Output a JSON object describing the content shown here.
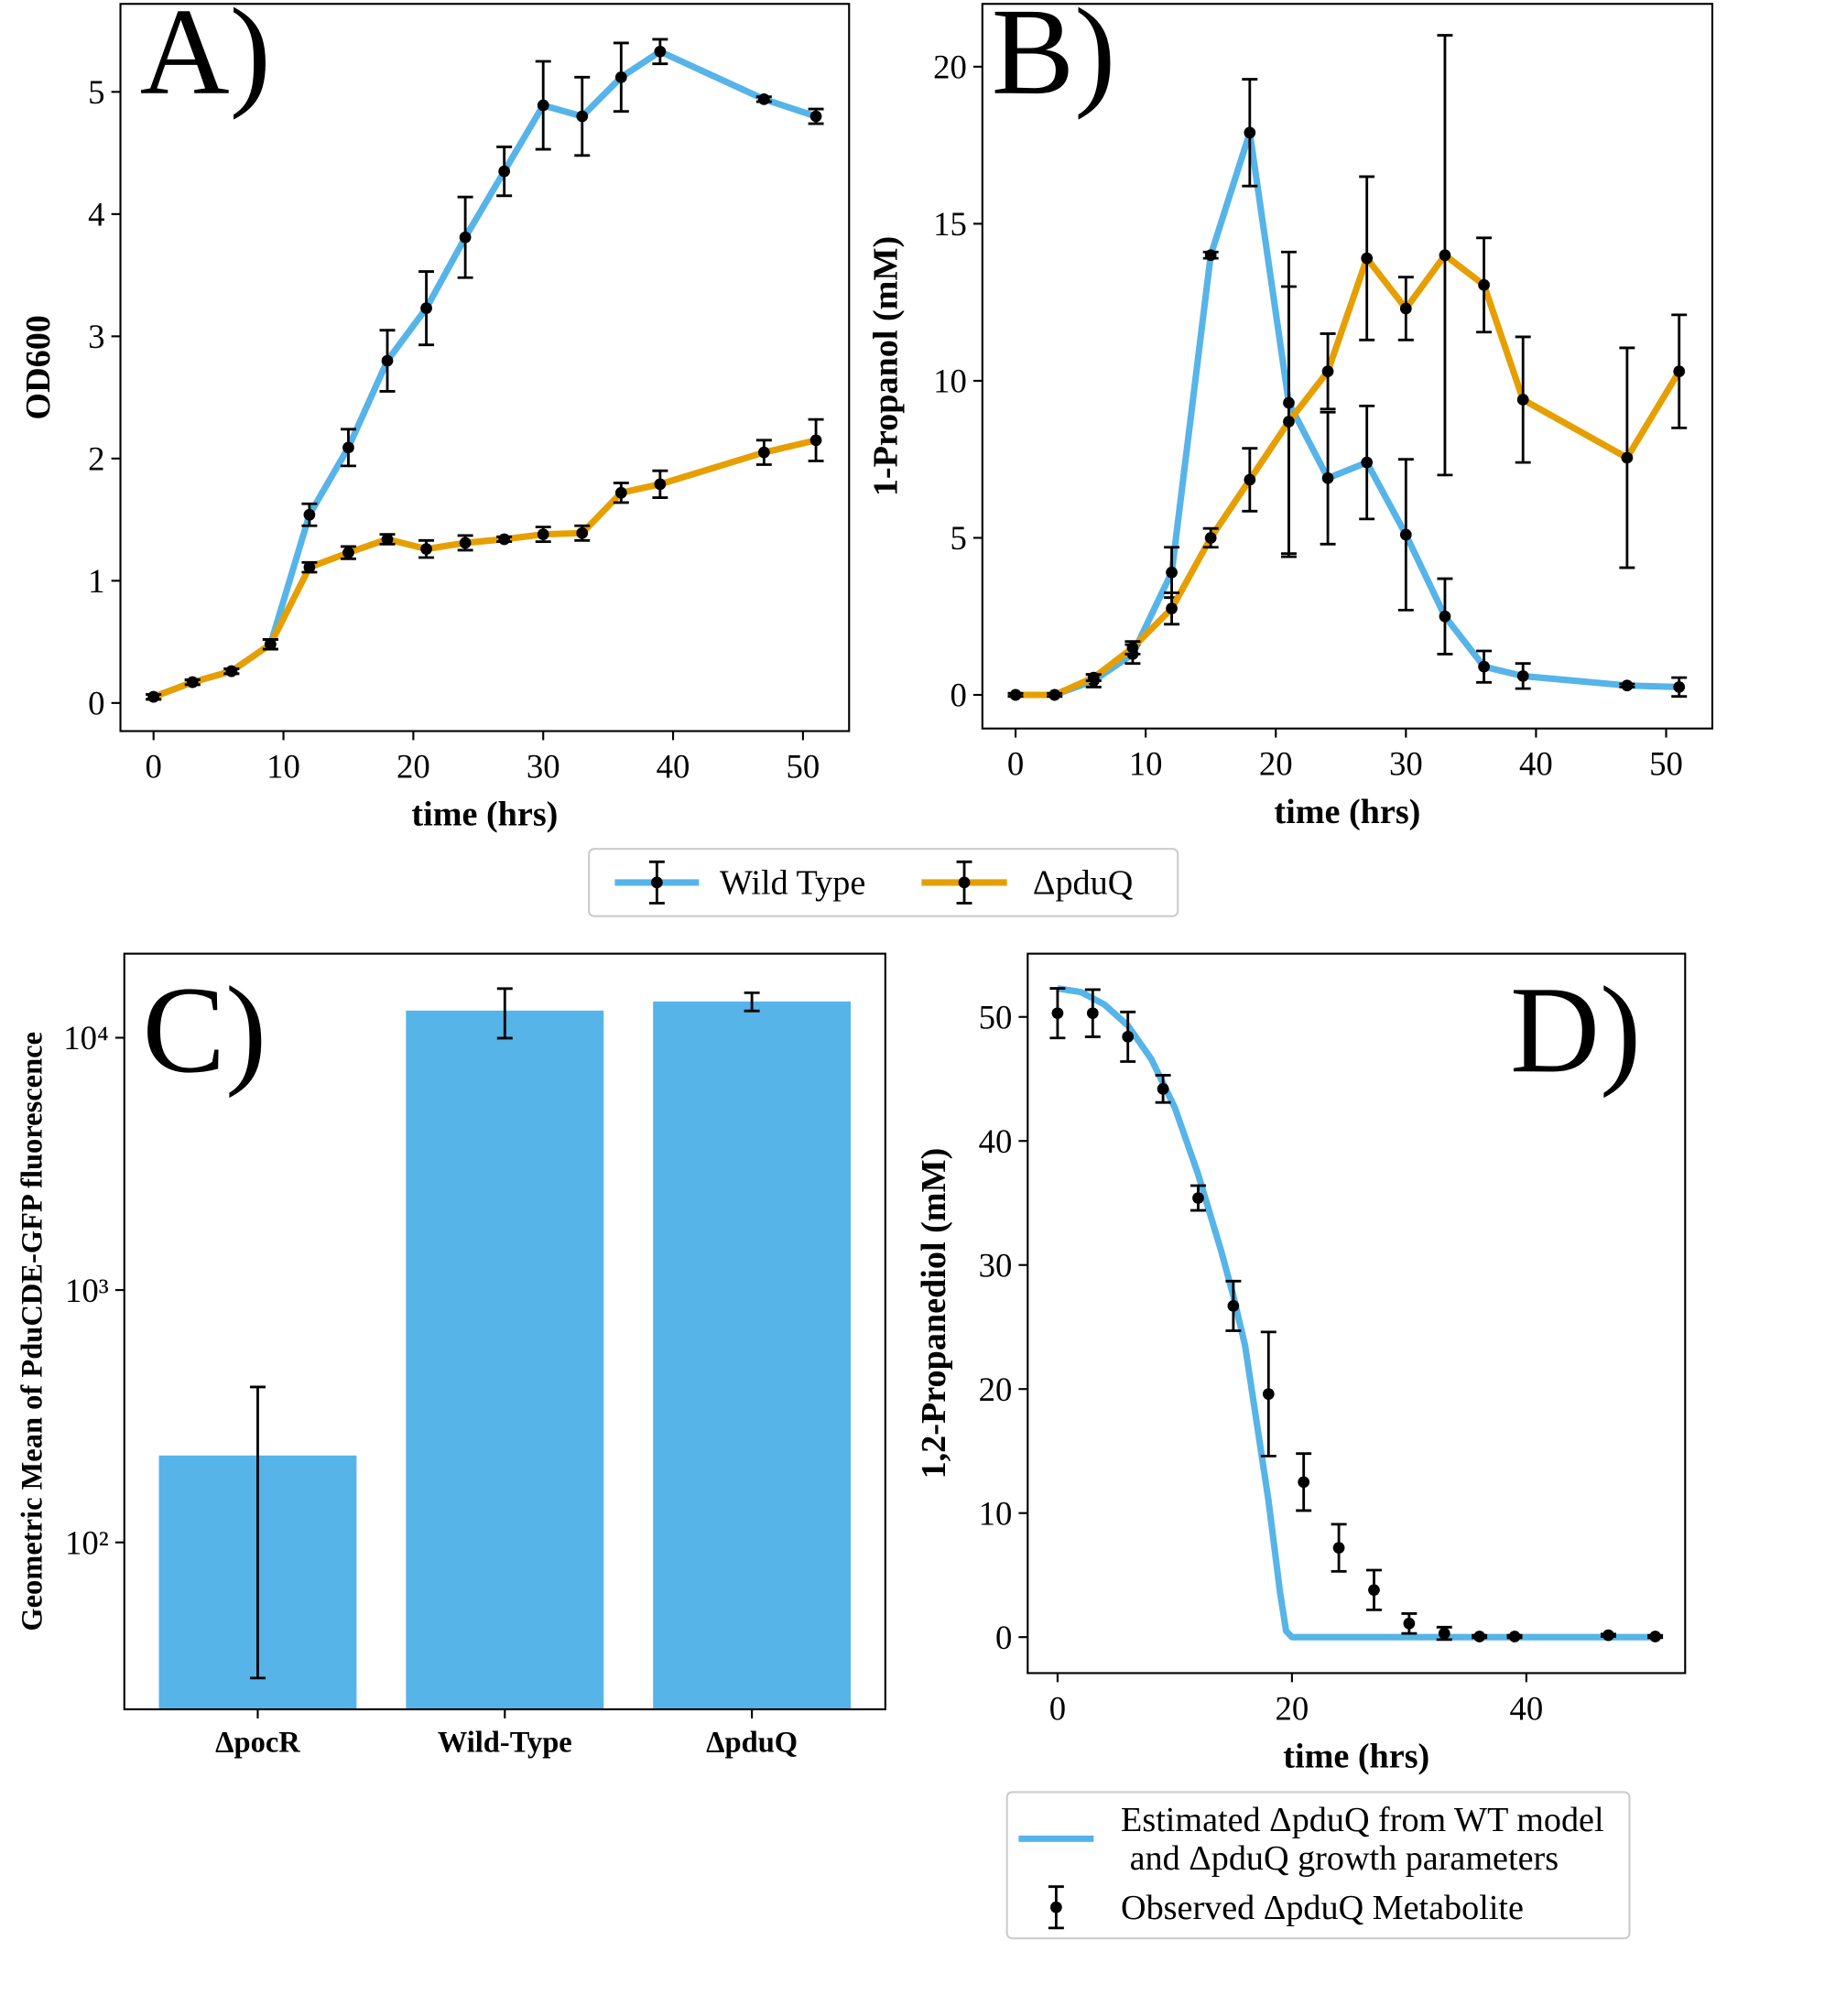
{
  "chart_data": [
    {
      "type": "line",
      "panel_label": "A)",
      "xlabel": "time (hrs)",
      "ylabel": "OD600",
      "x": [
        0,
        3,
        6,
        9,
        12,
        15,
        18,
        21,
        24,
        27,
        30,
        33,
        36,
        39,
        47,
        51
      ],
      "xlim": [
        -2.55,
        53.55
      ],
      "xticks": [
        0,
        10,
        20,
        30,
        40,
        50
      ],
      "ylim": [
        -0.23,
        5.72
      ],
      "yticks": [
        0,
        1,
        2,
        3,
        4,
        5
      ],
      "legend": "below",
      "series": [
        {
          "name": "Wild Type",
          "color": "#56B4E9",
          "values": [
            0.05,
            0.17,
            0.26,
            0.48,
            1.54,
            2.09,
            2.8,
            3.23,
            3.81,
            4.35,
            4.89,
            4.8,
            5.12,
            5.33,
            4.94,
            4.8
          ],
          "errors": [
            0.02,
            0.02,
            0.02,
            0.04,
            0.09,
            0.15,
            0.25,
            0.3,
            0.33,
            0.2,
            0.36,
            0.32,
            0.28,
            0.1,
            0.02,
            0.06
          ]
        },
        {
          "name": "ΔpduQ",
          "color": "#E69F00",
          "values": [
            0.05,
            0.17,
            0.26,
            0.48,
            1.11,
            1.23,
            1.34,
            1.26,
            1.31,
            1.34,
            1.38,
            1.39,
            1.72,
            1.79,
            2.05,
            2.15
          ],
          "errors": [
            0.02,
            0.02,
            0.02,
            0.04,
            0.04,
            0.05,
            0.04,
            0.07,
            0.06,
            0.02,
            0.06,
            0.06,
            0.08,
            0.11,
            0.1,
            0.17
          ]
        }
      ]
    },
    {
      "type": "line",
      "panel_label": "B)",
      "xlabel": "time (hrs)",
      "ylabel": "1-Propanol (mM)",
      "x": [
        0,
        3,
        6,
        9,
        12,
        15,
        18,
        21,
        24,
        27,
        30,
        33,
        36,
        39,
        47,
        51
      ],
      "xlim": [
        -2.55,
        53.55
      ],
      "xticks": [
        0,
        10,
        20,
        30,
        40,
        50
      ],
      "ylim": [
        -1.07,
        22
      ],
      "yticks": [
        0,
        5,
        10,
        15,
        20
      ],
      "series": [
        {
          "color": "#56B4E9",
          "values": [
            0,
            0,
            0.45,
            1.3,
            3.9,
            14.0,
            17.9,
            9.3,
            6.9,
            7.4,
            5.1,
            2.5,
            0.9,
            0.6,
            0.3,
            0.25
          ],
          "errors": [
            0.05,
            0.05,
            0.2,
            0.3,
            0.8,
            0.1,
            1.7,
            4.8,
            2.1,
            1.8,
            2.4,
            1.2,
            0.5,
            0.4,
            0.05,
            0.3
          ]
        },
        {
          "color": "#E69F00",
          "values": [
            0,
            0,
            0.55,
            1.5,
            2.75,
            5.0,
            6.85,
            8.7,
            10.3,
            13.9,
            12.3,
            14.0,
            13.05,
            9.4,
            7.55,
            10.3
          ],
          "errors": [
            0.05,
            0.05,
            0.1,
            0.2,
            0.5,
            0.3,
            1.0,
            4.3,
            1.2,
            2.6,
            1.0,
            7.0,
            1.5,
            2.0,
            3.5,
            1.8
          ]
        }
      ]
    },
    {
      "type": "bar",
      "panel_label": "C)",
      "ylabel": "Geometric Mean of PduCDE-GFP fluorescence",
      "categories": [
        "ΔpocR",
        "Wild-Type",
        "ΔpduQ"
      ],
      "values": [
        221,
        12810,
        13920
      ],
      "errors": [
        192,
        2850,
        1150
      ],
      "color": "#56B4E9",
      "log_scale": true,
      "ylim": [
        21.8,
        21540
      ],
      "yticks": [
        {
          "value": 100,
          "label": "10²"
        },
        {
          "value": 1000,
          "label": "10³"
        },
        {
          "value": 10000,
          "label": "10⁴"
        }
      ]
    },
    {
      "type": "line",
      "panel_label": "D)",
      "xlabel": "time (hrs)",
      "ylabel": "1,2-Propanediol (mM)",
      "xlim": [
        -2.55,
        53.55
      ],
      "xticks": [
        0,
        20,
        40
      ],
      "ylim": [
        -2.9,
        55.1
      ],
      "yticks": [
        0,
        10,
        20,
        30,
        40,
        50
      ],
      "legend": "lower",
      "series": [
        {
          "name": "Estimated ΔpduQ from WT model\n and ΔpduQ growth parameters",
          "color": "#56B4E9",
          "line": true,
          "x": [
            0,
            2,
            4,
            6,
            8,
            10,
            12,
            14,
            15,
            16,
            18,
            19,
            19.5,
            20,
            30,
            40,
            51
          ],
          "values": [
            52.3,
            52.0,
            51.0,
            49.3,
            46.6,
            42.7,
            37.3,
            31,
            27.5,
            23.5,
            11,
            3.5,
            0.5,
            0,
            0,
            0,
            0
          ]
        },
        {
          "name": "Observed ΔpduQ Metabolite",
          "color": "#000000",
          "line": false,
          "x": [
            0,
            3,
            6,
            9,
            12,
            15,
            18,
            21,
            24,
            27,
            30,
            33,
            36,
            39,
            47,
            51
          ],
          "values": [
            50.3,
            50.3,
            48.4,
            44.2,
            35.4,
            26.7,
            19.6,
            12.5,
            7.2,
            3.8,
            1.1,
            0.3,
            0.05,
            0.05,
            0.15,
            0.05
          ],
          "errors": [
            2.0,
            1.9,
            2.0,
            1.1,
            1.0,
            2.0,
            5.0,
            2.3,
            1.9,
            1.6,
            0.8,
            0.5,
            0.1,
            0.1,
            0.1,
            0.1
          ]
        }
      ]
    }
  ]
}
